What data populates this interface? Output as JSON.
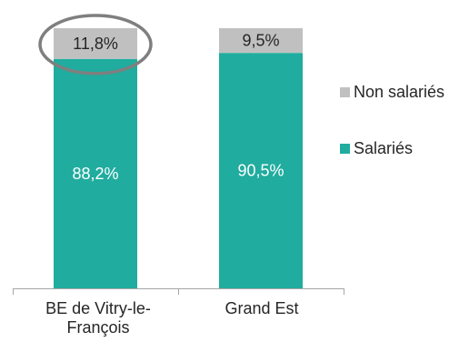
{
  "chart_data": {
    "type": "bar",
    "stacked": true,
    "percent_stacked": true,
    "categories": [
      "BE de Vitry-le-François",
      "Grand Est"
    ],
    "category_labels": [
      [
        "BE de Vitry-le-",
        "François"
      ],
      [
        "Grand Est"
      ]
    ],
    "series": [
      {
        "name": "Salariés",
        "values": [
          88.2,
          90.5
        ],
        "labels": [
          "88,2%",
          "90,5%"
        ],
        "color": "#20ac9f",
        "label_color": "#ffffff"
      },
      {
        "name": "Non salariés",
        "values": [
          11.8,
          9.5
        ],
        "labels": [
          "11,8%",
          "9,5%"
        ],
        "color": "#c0c0c0",
        "label_color": "#262626"
      }
    ],
    "legend": {
      "position": "right",
      "order": [
        "Non salariés",
        "Salariés"
      ]
    },
    "ylim": [
      0,
      100
    ],
    "gridlines": false,
    "annotations": [
      {
        "type": "ellipse-highlight",
        "target_category": "BE de Vitry-le-François",
        "target_series": "Non salariés",
        "color": "#7f7f7f"
      }
    ]
  }
}
